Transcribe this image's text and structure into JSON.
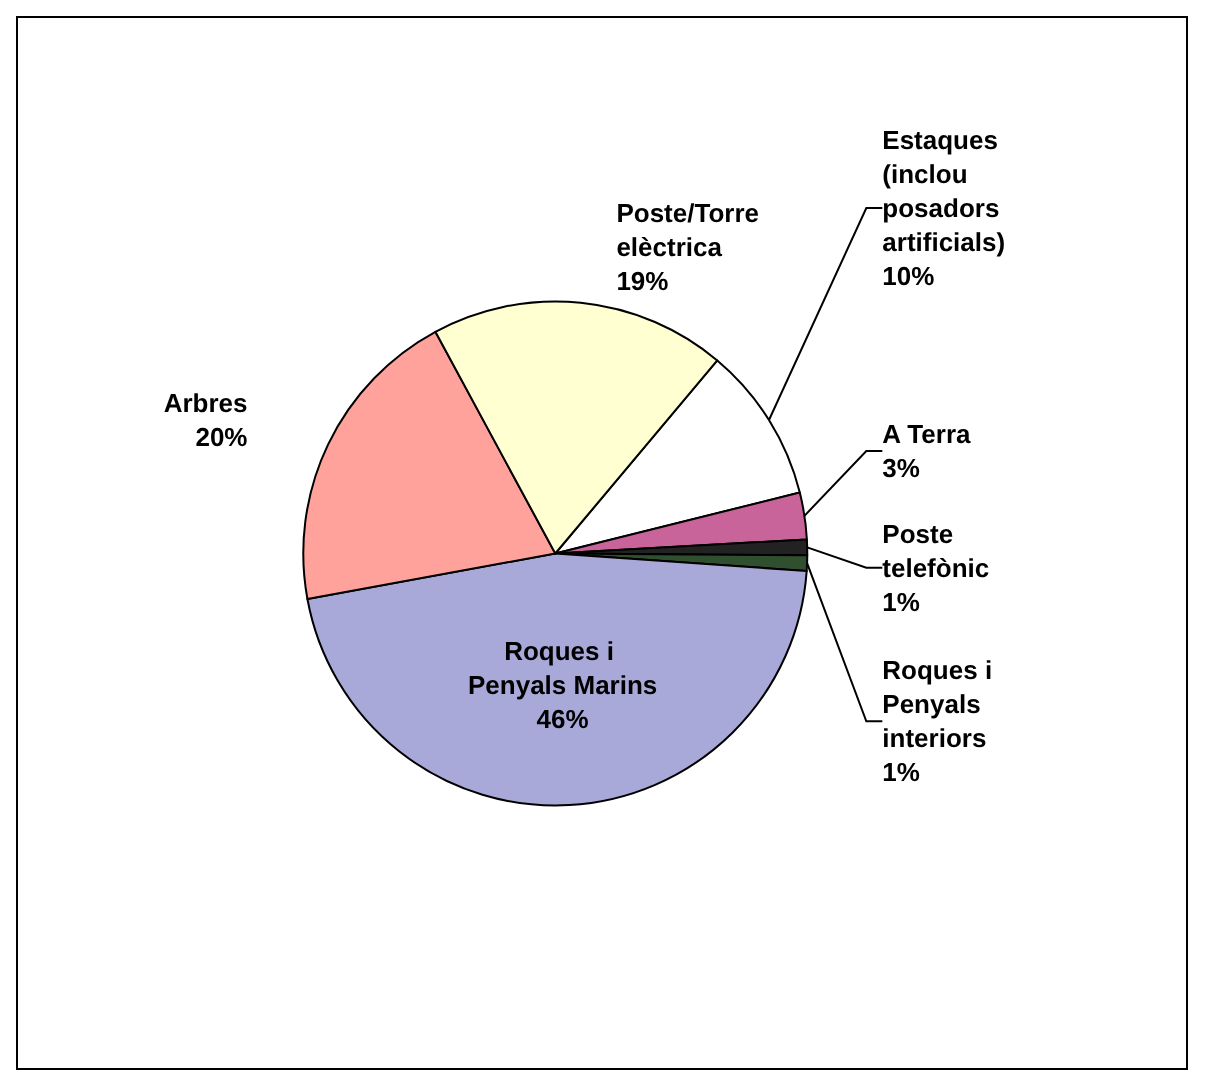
{
  "chart_data": {
    "type": "pie",
    "categories": [
      "Estaques (inclou posadors artificials)",
      "A Terra",
      "Poste telefònic",
      "Roques i Penyals interiors",
      "Roques i Penyals Marins",
      "Arbres",
      "Poste/Torre elèctrica"
    ],
    "values": [
      10,
      3,
      1,
      1,
      46,
      20,
      19
    ],
    "value_labels": [
      "10%",
      "3%",
      "1%",
      "1%",
      "46%",
      "20%",
      "19%"
    ],
    "colors": [
      "#ffffff",
      "#c8649a",
      "#222222",
      "#2f4f2f",
      "#a9a9d9",
      "#ffa29c",
      "#ffffd2"
    ],
    "legend": false
  }
}
